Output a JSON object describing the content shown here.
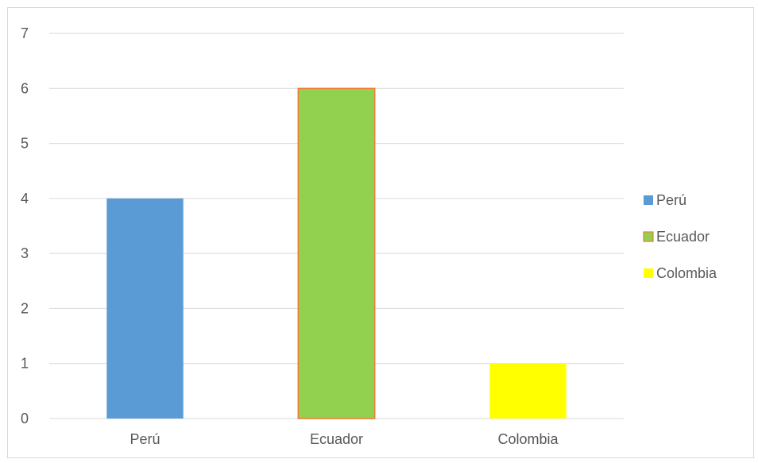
{
  "chart_data": {
    "type": "bar",
    "categories": [
      "Perú",
      "Ecuador",
      "Colombia"
    ],
    "series": [
      {
        "name": "Perú",
        "values": [
          4,
          null,
          null
        ],
        "color": "#5b9bd5"
      },
      {
        "name": "Ecuador",
        "values": [
          null,
          6,
          null
        ],
        "color": "#92d050",
        "border": "#ed7d31"
      },
      {
        "name": "Colombia",
        "values": [
          null,
          null,
          1
        ],
        "color": "#ffff00"
      }
    ],
    "values": [
      4,
      6,
      1
    ],
    "title": "",
    "xlabel": "",
    "ylabel": "",
    "ylim": [
      0,
      7
    ],
    "yticks": [
      0,
      1,
      2,
      3,
      4,
      5,
      6,
      7
    ],
    "grid": true,
    "legend_position": "right"
  }
}
